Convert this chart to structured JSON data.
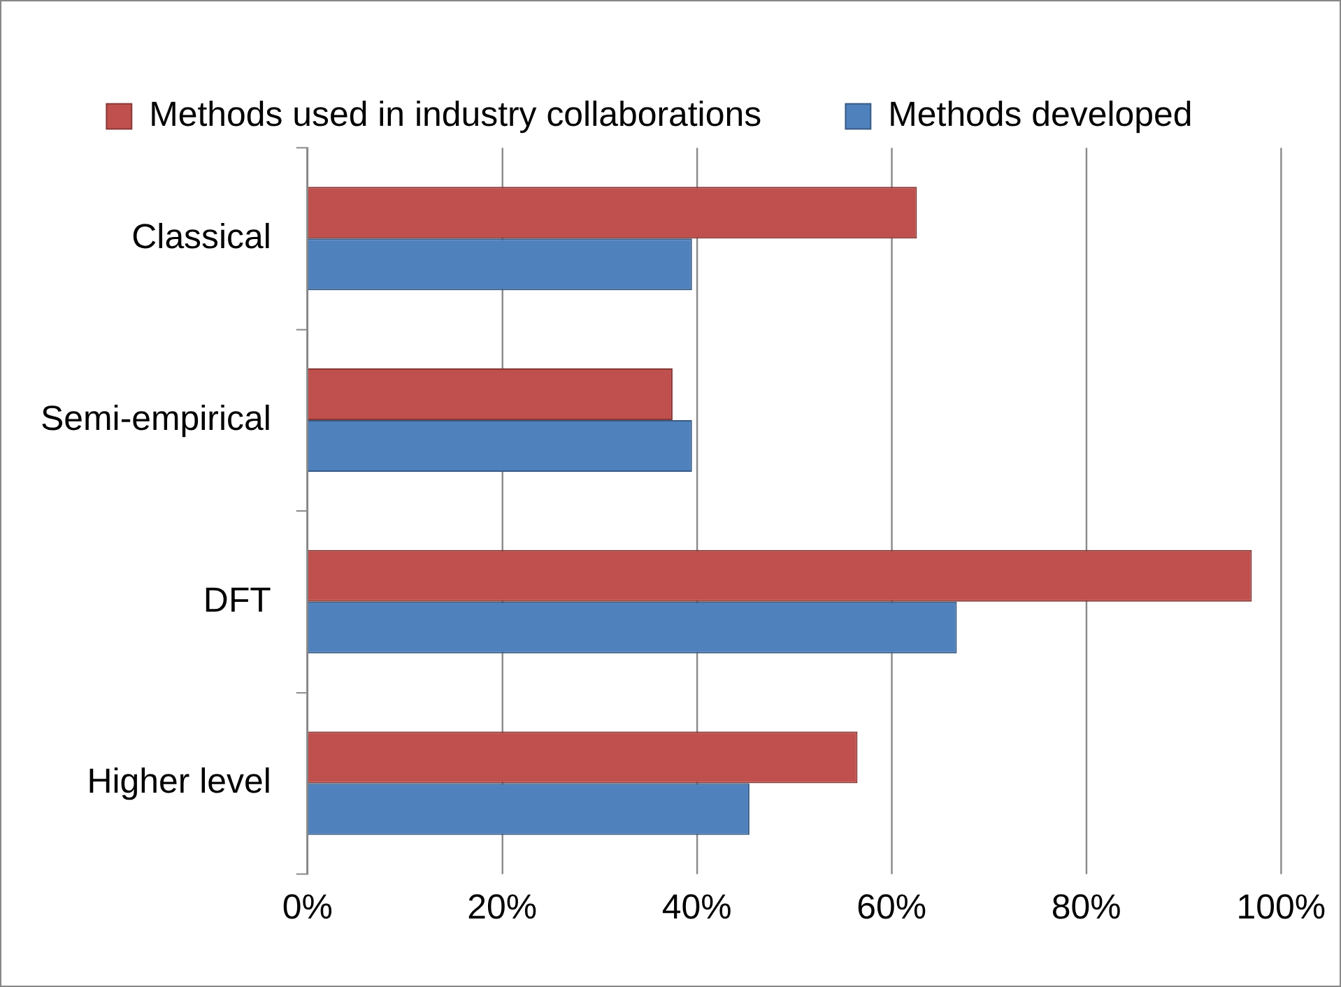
{
  "chart_data": {
    "type": "bar",
    "orientation": "horizontal",
    "categories": [
      "Classical",
      "Semi-empirical",
      "DFT",
      "Higher level"
    ],
    "series": [
      {
        "name": "Methods used in industry collaborations",
        "color": "#c0504d",
        "values": [
          62.6,
          37.5,
          97,
          56.5
        ]
      },
      {
        "name": "Methods developed",
        "color": "#4f81bd",
        "values": [
          39.5,
          39.5,
          66.7,
          45.4
        ]
      }
    ],
    "xlim": [
      0,
      100
    ],
    "xticks": [
      {
        "value": 0,
        "label": "0%"
      },
      {
        "value": 20,
        "label": "20%"
      },
      {
        "value": 40,
        "label": "40%"
      },
      {
        "value": 60,
        "label": "60%"
      },
      {
        "value": 80,
        "label": "80%"
      },
      {
        "value": 100,
        "label": "100%"
      }
    ],
    "grid": "x",
    "legend": "top"
  }
}
